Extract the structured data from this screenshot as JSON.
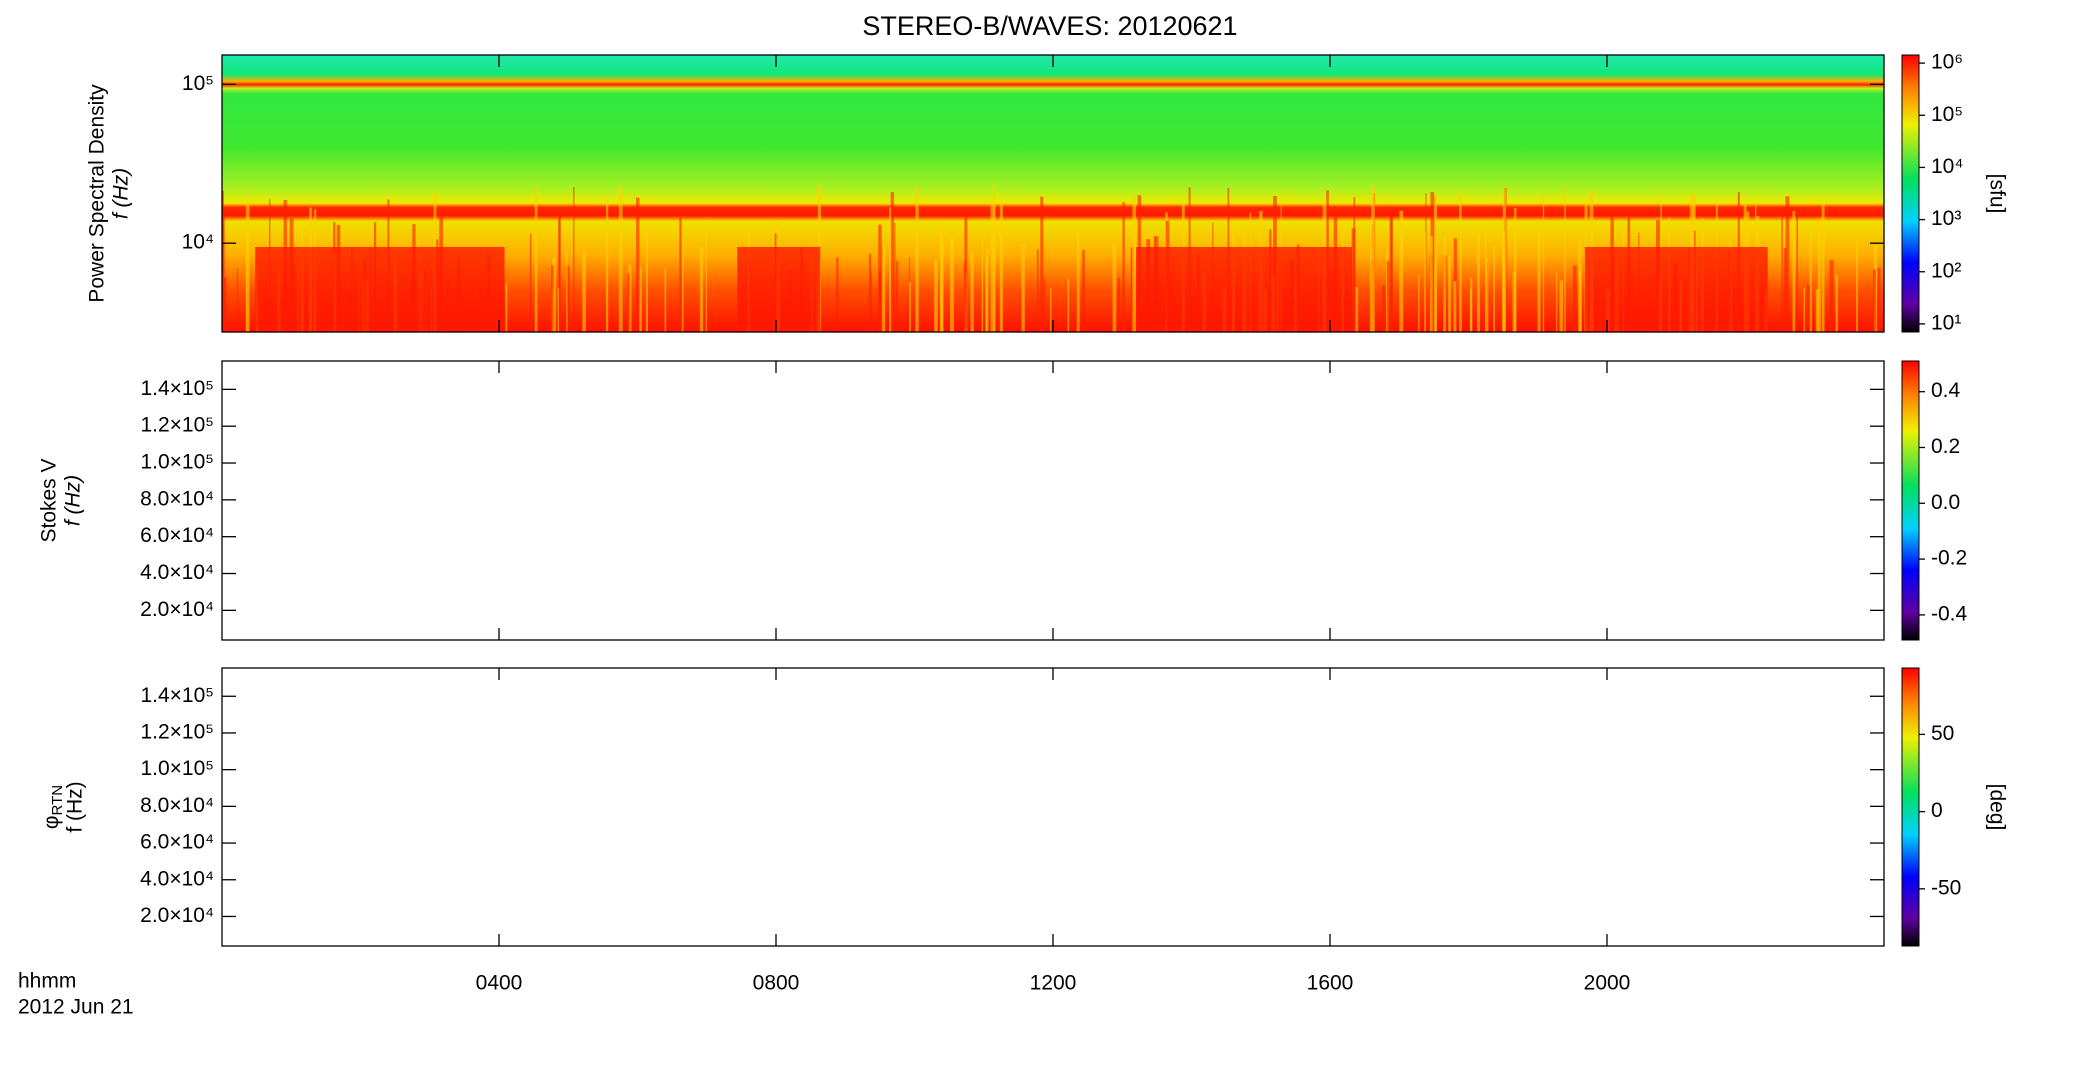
{
  "chart_data": [
    {
      "type": "heatmap",
      "title": "STEREO-B/WAVES: 20120621",
      "ylabel": [
        "Power Spectral Density",
        "f (Hz)"
      ],
      "yscale": "log",
      "ylim": [
        2760,
        153000
      ],
      "yticks": [
        {
          "value": 10000,
          "label": "10⁴"
        },
        {
          "value": 100000,
          "label": "10⁵"
        }
      ],
      "colorbar": {
        "scale": "log",
        "clim": [
          7,
          1430000
        ],
        "label": "[sfu]",
        "ticks": [
          {
            "value": 10,
            "label": "10¹"
          },
          {
            "value": 100,
            "label": "10²"
          },
          {
            "value": 1000,
            "label": "10³"
          },
          {
            "value": 10000,
            "label": "10⁴"
          },
          {
            "value": 100000,
            "label": "10⁵"
          },
          {
            "value": 1000000,
            "label": "10⁶"
          }
        ]
      }
    },
    {
      "type": "heatmap",
      "ylabel": [
        "Stokes V",
        "f (Hz)"
      ],
      "yscale": "linear",
      "ylim": [
        3900,
        155400
      ],
      "yticks": [
        {
          "value": 20000,
          "label": "2.0×10⁴"
        },
        {
          "value": 40000,
          "label": "4.0×10⁴"
        },
        {
          "value": 60000,
          "label": "6.0×10⁴"
        },
        {
          "value": 80000,
          "label": "8.0×10⁴"
        },
        {
          "value": 100000,
          "label": "1.0×10⁵"
        },
        {
          "value": 120000,
          "label": "1.2×10⁵"
        },
        {
          "value": 140000,
          "label": "1.4×10⁵"
        }
      ],
      "colorbar": {
        "scale": "linear",
        "clim": [
          -0.49,
          0.51
        ],
        "ticks": [
          {
            "value": -0.4,
            "label": "-0.4"
          },
          {
            "value": -0.2,
            "label": "-0.2"
          },
          {
            "value": 0,
            "label": "0.0"
          },
          {
            "value": 0.2,
            "label": "0.2"
          },
          {
            "value": 0.4,
            "label": "0.4"
          }
        ]
      }
    },
    {
      "type": "heatmap",
      "ylabel_symbol": "φ",
      "ylabel_subscript": "RTN",
      "ylabel": [
        "f (Hz)"
      ],
      "yscale": "linear",
      "ylim": [
        3900,
        155400
      ],
      "yticks": [
        {
          "value": 20000,
          "label": "2.0×10⁴"
        },
        {
          "value": 40000,
          "label": "4.0×10⁴"
        },
        {
          "value": 60000,
          "label": "6.0×10⁴"
        },
        {
          "value": 80000,
          "label": "8.0×10⁴"
        },
        {
          "value": 100000,
          "label": "1.0×10⁵"
        },
        {
          "value": 120000,
          "label": "1.2×10⁵"
        },
        {
          "value": 140000,
          "label": "1.4×10⁵"
        }
      ],
      "colorbar": {
        "scale": "linear",
        "clim": [
          -87,
          93
        ],
        "label": "[deg]",
        "ticks": [
          -50,
          0,
          50
        ]
      },
      "xlabel": [
        "hhmm",
        "2012 Jun 21"
      ],
      "xlim": [
        0,
        24
      ],
      "xticks": [
        {
          "value": 4,
          "label": "0400"
        },
        {
          "value": 8,
          "label": "0800"
        },
        {
          "value": 12,
          "label": "1200"
        },
        {
          "value": 16,
          "label": "1600"
        },
        {
          "value": 20,
          "label": "2000"
        }
      ]
    }
  ]
}
